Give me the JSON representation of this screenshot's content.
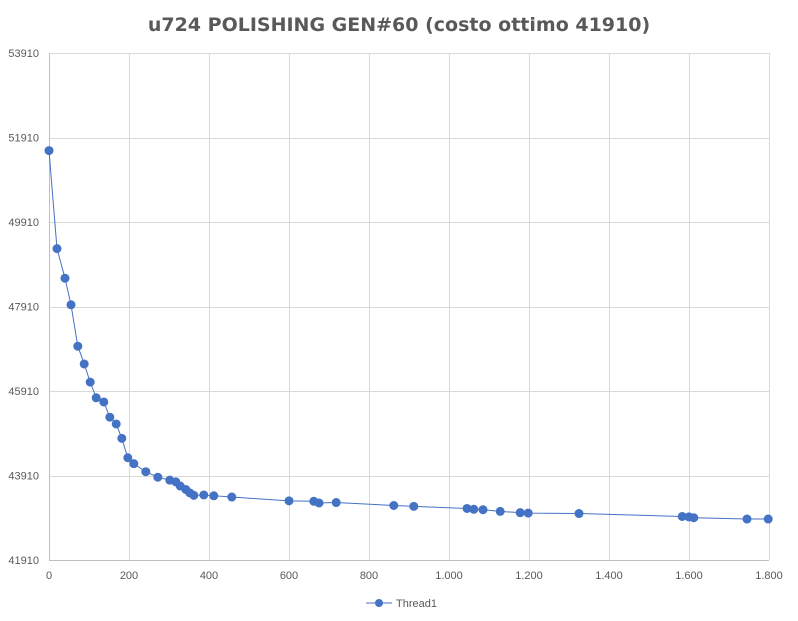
{
  "chart_data": {
    "type": "scatter",
    "title": "u724 POLISHING GEN#60 (costo ottimo 41910)",
    "xlabel": "",
    "ylabel": "",
    "xlim": [
      0,
      1800
    ],
    "ylim": [
      41910,
      53910
    ],
    "x_ticks": [
      0,
      200,
      400,
      600,
      800,
      1000,
      1200,
      1400,
      1600,
      1800
    ],
    "x_tick_labels": [
      "0",
      "200",
      "400",
      "600",
      "800",
      "1.000",
      "1.200",
      "1.400",
      "1.600",
      "1.800"
    ],
    "y_ticks": [
      41910,
      43910,
      45910,
      47910,
      49910,
      51910,
      53910
    ],
    "y_tick_labels": [
      "41910",
      "43910",
      "45910",
      "47910",
      "49910",
      "51910",
      "53910"
    ],
    "grid": true,
    "legend_position": "bottom",
    "series": [
      {
        "name": "Thread1",
        "color": "#4472c4",
        "marker": "circle",
        "points": [
          [
            0,
            51600
          ],
          [
            20,
            49280
          ],
          [
            40,
            48580
          ],
          [
            55,
            47950
          ],
          [
            72,
            46970
          ],
          [
            88,
            46550
          ],
          [
            103,
            46120
          ],
          [
            118,
            45750
          ],
          [
            137,
            45650
          ],
          [
            152,
            45290
          ],
          [
            168,
            45130
          ],
          [
            182,
            44790
          ],
          [
            197,
            44330
          ],
          [
            212,
            44190
          ],
          [
            242,
            44000
          ],
          [
            272,
            43870
          ],
          [
            302,
            43800
          ],
          [
            317,
            43760
          ],
          [
            328,
            43660
          ],
          [
            342,
            43580
          ],
          [
            352,
            43500
          ],
          [
            362,
            43440
          ],
          [
            387,
            43450
          ],
          [
            412,
            43430
          ],
          [
            457,
            43400
          ],
          [
            600,
            43310
          ],
          [
            662,
            43300
          ],
          [
            675,
            43260
          ],
          [
            718,
            43270
          ],
          [
            862,
            43200
          ],
          [
            912,
            43180
          ],
          [
            1045,
            43130
          ],
          [
            1062,
            43110
          ],
          [
            1085,
            43100
          ],
          [
            1128,
            43060
          ],
          [
            1178,
            43030
          ],
          [
            1198,
            43020
          ],
          [
            1325,
            43010
          ],
          [
            1583,
            42940
          ],
          [
            1600,
            42930
          ],
          [
            1612,
            42910
          ],
          [
            1745,
            42880
          ],
          [
            1798,
            42880
          ]
        ]
      }
    ]
  }
}
